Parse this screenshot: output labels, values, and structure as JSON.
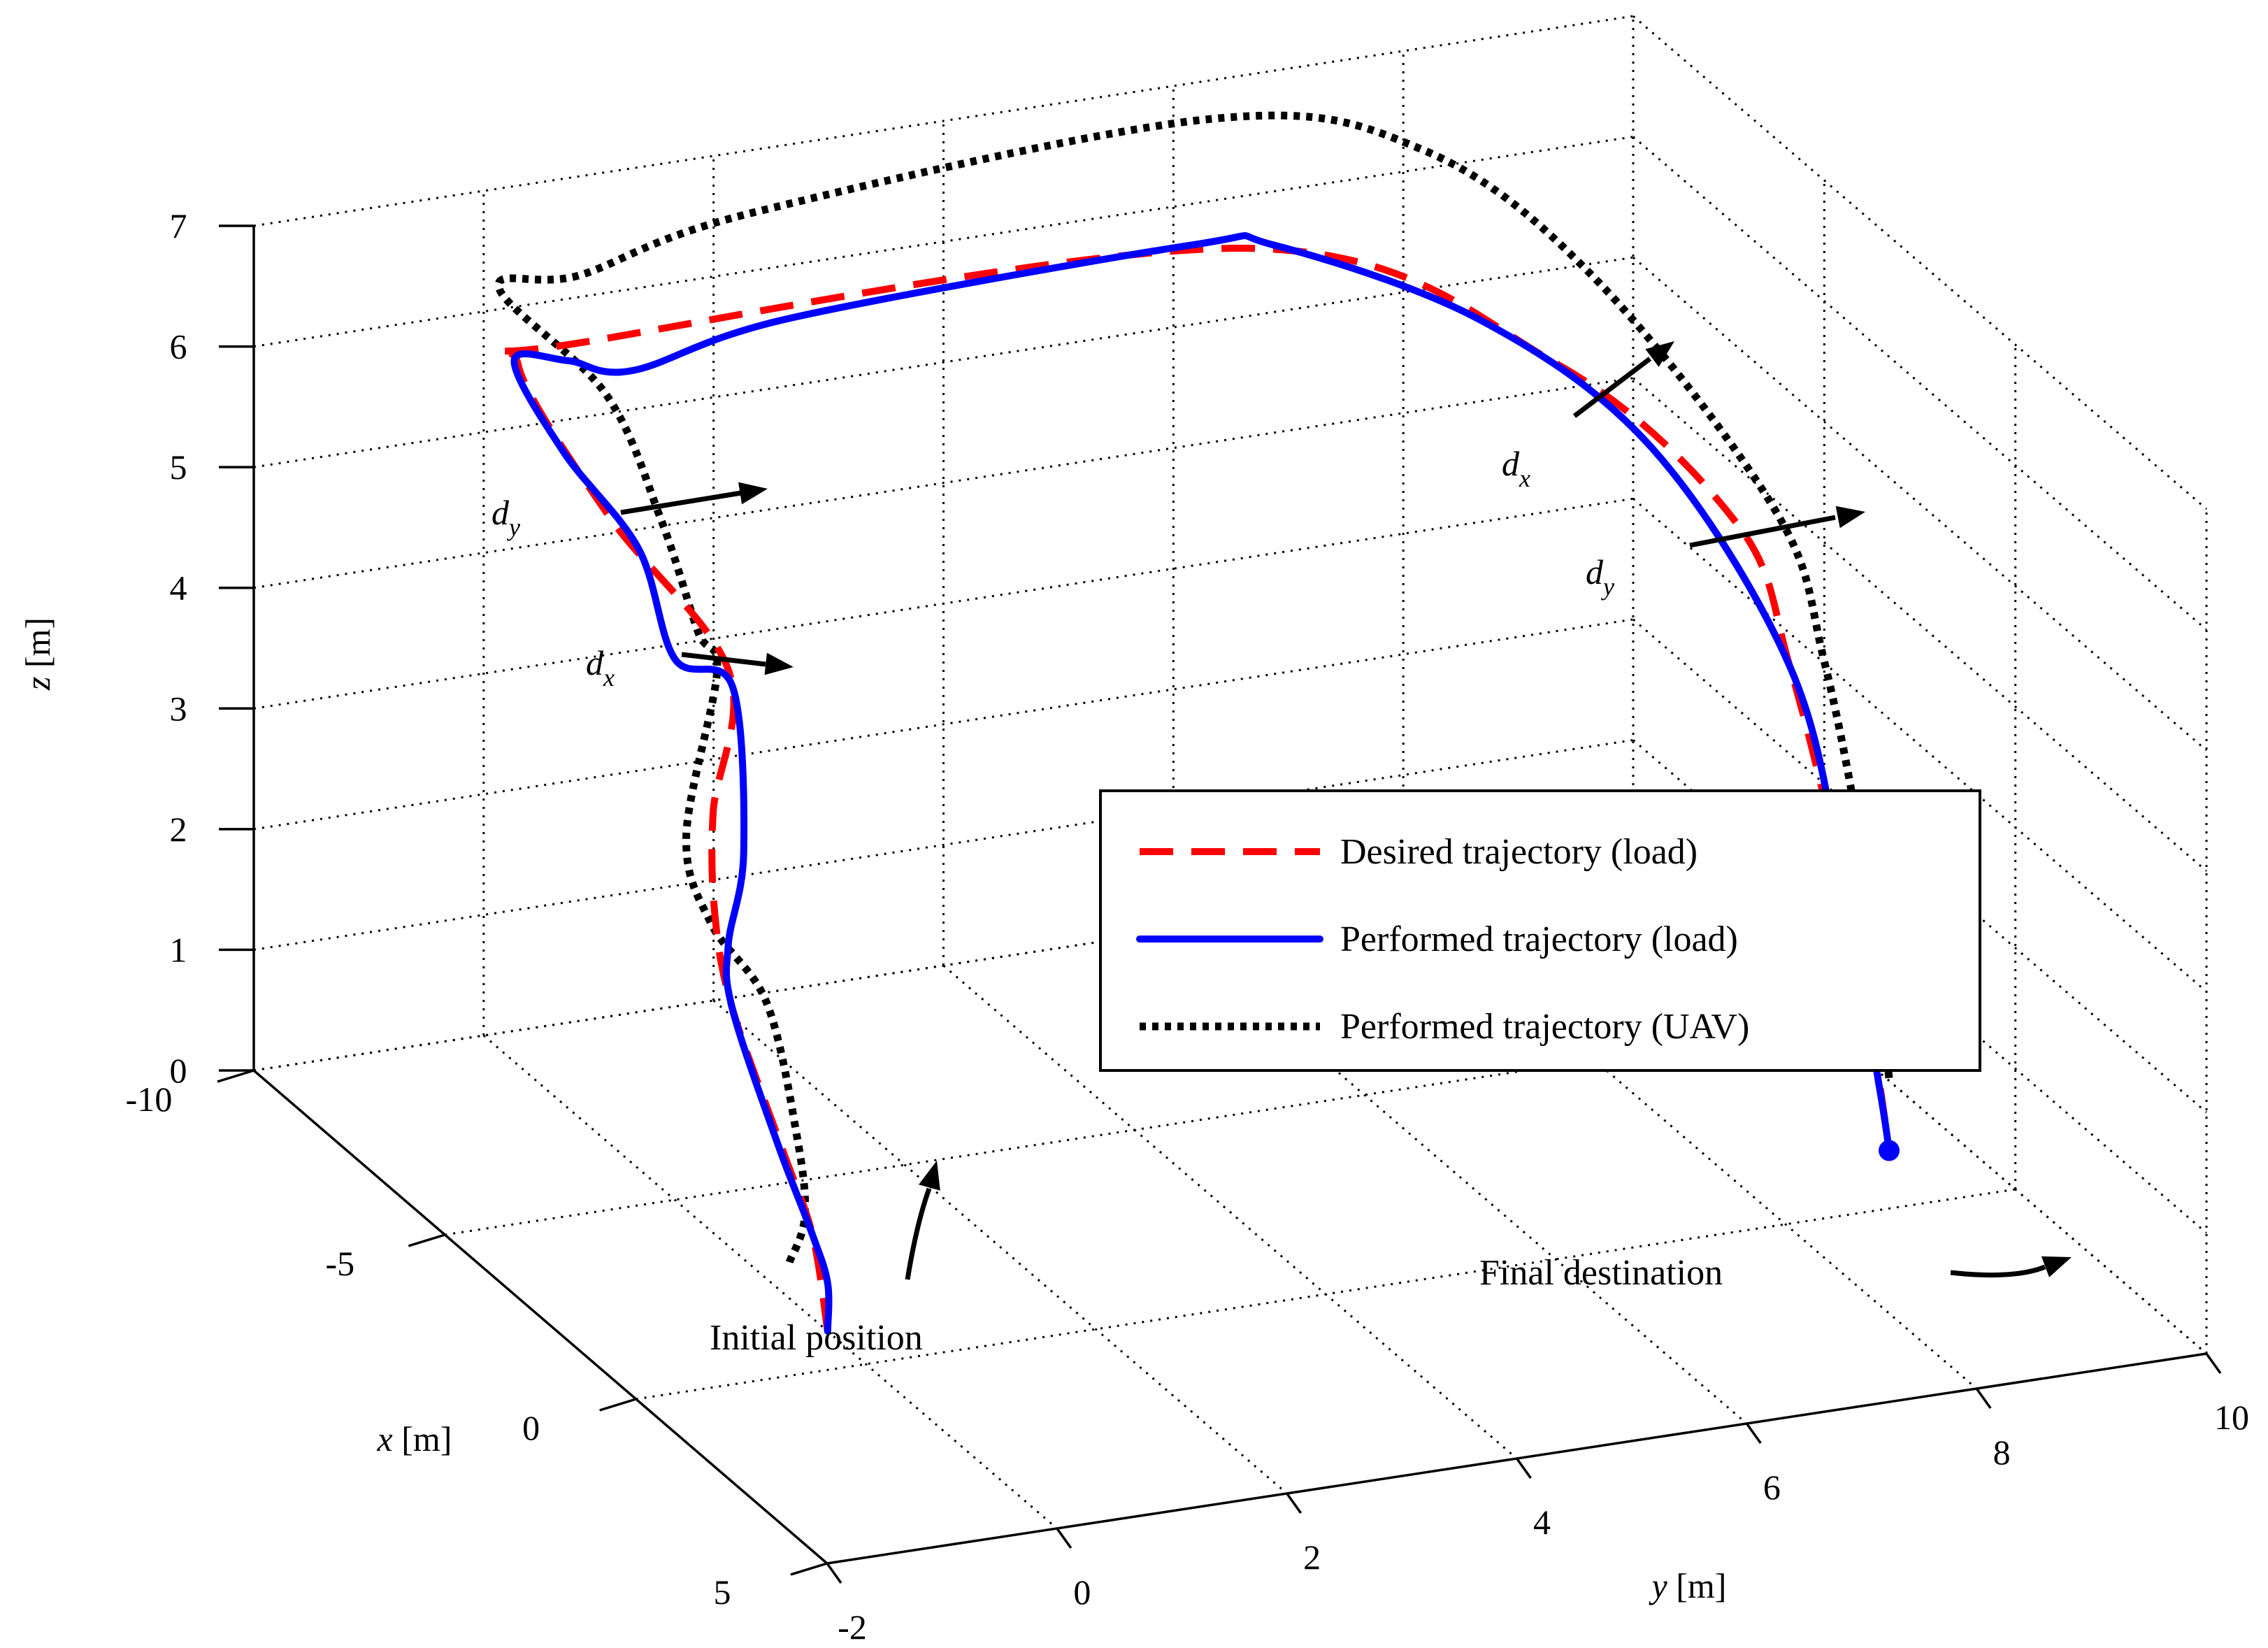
{
  "chart_data": {
    "type": "line",
    "projection": "3d",
    "xlabel": "x [m]",
    "ylabel": "y [m]",
    "zlabel": "z [m]",
    "xlim": [
      -10,
      5
    ],
    "ylim": [
      -2,
      10
    ],
    "zlim": [
      0,
      7
    ],
    "x_ticks": [
      "-10",
      "-5",
      "0",
      "5"
    ],
    "y_ticks": [
      "-2",
      "0",
      "2",
      "4",
      "6",
      "8",
      "10"
    ],
    "z_ticks": [
      "0",
      "1",
      "2",
      "3",
      "4",
      "5",
      "6",
      "7"
    ],
    "grid": true,
    "legend": {
      "placement": "center-right",
      "entries": [
        "Desired trajectory (load)",
        "Performed trajectory (load)",
        "Performed trajectory (UAV)"
      ]
    },
    "series": [
      {
        "name": "Desired trajectory (load)",
        "color": "#ff0000",
        "style": "dashed",
        "points": [
          {
            "x": -1.0,
            "y": 0.0,
            "z": 0.0
          },
          {
            "x": -2.0,
            "y": 0.2,
            "z": 0.5
          },
          {
            "x": -2.8,
            "y": 0.2,
            "z": 1.0
          },
          {
            "x": -3.5,
            "y": 0.0,
            "z": 2.0
          },
          {
            "x": -4.4,
            "y": 0.15,
            "z": 2.5
          },
          {
            "x": -5.5,
            "y": 0.5,
            "z": 3.0
          },
          {
            "x": -6.0,
            "y": 0.8,
            "z": 4.0
          },
          {
            "x": -7.3,
            "y": 0.2,
            "z": 5.0
          },
          {
            "x": -8.5,
            "y": -0.2,
            "z": 6.0
          },
          {
            "x": -8.5,
            "y": 0.3,
            "z": 6.1
          },
          {
            "x": -8.0,
            "y": 6.0,
            "z": 6.2
          },
          {
            "x": -6.0,
            "y": 8.0,
            "z": 5.5
          },
          {
            "x": -4.3,
            "y": 9.0,
            "z": 4.5
          },
          {
            "x": -3.5,
            "y": 9.2,
            "z": 3.5
          },
          {
            "x": -2.4,
            "y": 9.3,
            "z": 2.0
          },
          {
            "x": -1.7,
            "y": 9.35,
            "z": 0.7
          },
          {
            "x": -1.5,
            "y": 9.4,
            "z": 0.0
          }
        ]
      },
      {
        "name": "Performed trajectory (load)",
        "color": "#0000ff",
        "style": "solid",
        "points": [
          {
            "x": -1.0,
            "y": 0.0,
            "z": 0.0
          },
          {
            "x": -1.3,
            "y": 0.1,
            "z": 0.3
          },
          {
            "x": -2.0,
            "y": 0.2,
            "z": 0.5
          },
          {
            "x": -2.9,
            "y": 0.2,
            "z": 1.0
          },
          {
            "x": -3.5,
            "y": 0.0,
            "z": 2.0
          },
          {
            "x": -3.9,
            "y": 0.1,
            "z": 2.4
          },
          {
            "x": -5.0,
            "y": 0.6,
            "z": 2.8
          },
          {
            "x": -6.2,
            "y": 0.9,
            "z": 3.8
          },
          {
            "x": -6.5,
            "y": 0.5,
            "z": 4.0
          },
          {
            "x": -7.0,
            "y": 0.35,
            "z": 4.8
          },
          {
            "x": -7.6,
            "y": -0.1,
            "z": 5.5
          },
          {
            "x": -8.6,
            "y": -0.2,
            "z": 6.0
          },
          {
            "x": -8.4,
            "y": 0.2,
            "z": 6.0
          },
          {
            "x": -8.2,
            "y": 0.7,
            "z": 5.9
          },
          {
            "x": -8.0,
            "y": 2.0,
            "z": 6.2
          },
          {
            "x": -8.0,
            "y": 5.5,
            "z": 6.3
          },
          {
            "x": -8.0,
            "y": 6.2,
            "z": 6.2
          },
          {
            "x": -6.5,
            "y": 7.5,
            "z": 5.8
          },
          {
            "x": -5.0,
            "y": 8.5,
            "z": 5.0
          },
          {
            "x": -3.5,
            "y": 9.2,
            "z": 3.5
          },
          {
            "x": -2.4,
            "y": 9.3,
            "z": 2.0
          },
          {
            "x": -1.6,
            "y": 9.35,
            "z": 0.5
          },
          {
            "x": -1.5,
            "y": 9.4,
            "z": 0.0
          }
        ]
      },
      {
        "name": "Performed trajectory (UAV)",
        "color": "#000000",
        "style": "dotted",
        "points": [
          {
            "x": -2.0,
            "y": 0.0,
            "z": 0.3
          },
          {
            "x": -2.5,
            "y": 0.3,
            "z": 0.5
          },
          {
            "x": -3.0,
            "y": 0.4,
            "z": 1.0
          },
          {
            "x": -3.5,
            "y": 0.3,
            "z": 2.0
          },
          {
            "x": -4.2,
            "y": 0.05,
            "z": 2.5
          },
          {
            "x": -5.0,
            "y": 0.1,
            "z": 3.0
          },
          {
            "x": -6.0,
            "y": 0.7,
            "z": 4.0
          },
          {
            "x": -6.5,
            "y": 0.7,
            "z": 4.2
          },
          {
            "x": -7.0,
            "y": 0.55,
            "z": 5.0
          },
          {
            "x": -8.0,
            "y": 0.4,
            "z": 5.8
          },
          {
            "x": -9.0,
            "y": -0.2,
            "z": 6.5
          },
          {
            "x": -9.0,
            "y": 0.5,
            "z": 6.5
          },
          {
            "x": -9.0,
            "y": 2.0,
            "z": 6.8
          },
          {
            "x": -9.0,
            "y": 6.0,
            "z": 7.0
          },
          {
            "x": -8.0,
            "y": 7.5,
            "z": 6.8
          },
          {
            "x": -6.5,
            "y": 8.5,
            "z": 6.0
          },
          {
            "x": -4.5,
            "y": 9.4,
            "z": 4.5
          },
          {
            "x": -3.5,
            "y": 9.5,
            "z": 3.5
          },
          {
            "x": -2.4,
            "y": 9.5,
            "z": 2.0
          },
          {
            "x": -1.8,
            "y": 9.5,
            "z": 0.5
          }
        ]
      }
    ],
    "annotations": [
      {
        "text": "Initial position"
      },
      {
        "text": "Final destination"
      },
      {
        "text": "d_x"
      },
      {
        "text": "d_y"
      },
      {
        "text": "d_x"
      },
      {
        "text": "d_y"
      }
    ]
  }
}
